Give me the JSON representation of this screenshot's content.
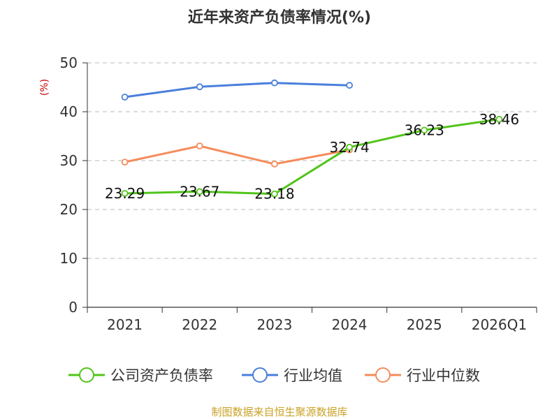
{
  "chart_data": {
    "type": "line",
    "title": "近年来资产负债率情况(%)",
    "ylabel": "(%)",
    "ylim": [
      0,
      50
    ],
    "yticks": [
      0,
      10,
      20,
      30,
      40,
      50
    ],
    "categories": [
      "2021",
      "2022",
      "2023",
      "2024",
      "2025",
      "2026Q1"
    ],
    "grid": true,
    "legend_position": "bottom",
    "series": [
      {
        "name": "公司资产负债率",
        "color": "#52c41a",
        "values": [
          23.29,
          23.67,
          23.18,
          32.74,
          36.23,
          38.46
        ],
        "labels": [
          "23.29",
          "23.67",
          "23.18",
          "32.74",
          "36.23",
          "38.46"
        ]
      },
      {
        "name": "行业均值",
        "color": "#4a7fdc",
        "values": [
          43.0,
          45.1,
          45.9,
          45.4,
          null,
          null
        ]
      },
      {
        "name": "行业中位数",
        "color": "#f58c5b",
        "values": [
          29.7,
          33.0,
          29.3,
          32.2,
          null,
          null
        ]
      }
    ]
  },
  "footer": {
    "source": "制图数据来自恒生聚源数据库"
  }
}
